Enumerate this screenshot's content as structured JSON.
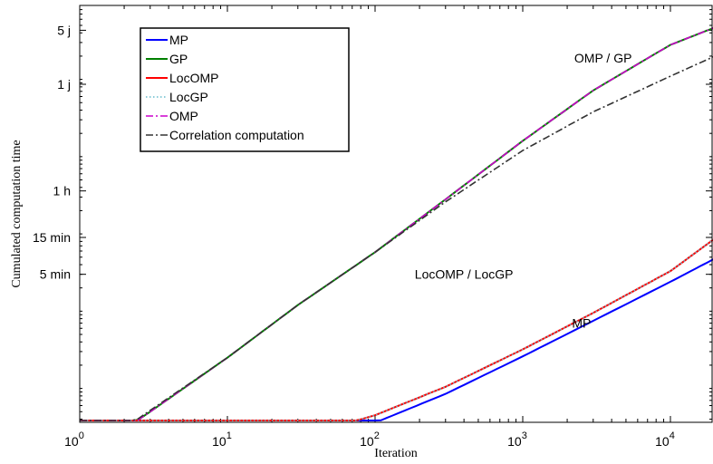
{
  "chart_data": {
    "type": "line",
    "xlabel": "Iteration",
    "ylabel": "Cumulated computation time",
    "x_scale": "log",
    "y_scale": "log",
    "xlim": [
      1,
      20000
    ],
    "x_ticks": [
      {
        "value": 1,
        "base": "10",
        "exp": "0"
      },
      {
        "value": 10,
        "base": "10",
        "exp": "1"
      },
      {
        "value": 100,
        "base": "10",
        "exp": "2"
      },
      {
        "value": 1000,
        "base": "10",
        "exp": "3"
      },
      {
        "value": 10000,
        "base": "10",
        "exp": "4"
      }
    ],
    "y_ticks": [
      {
        "label": "5 min",
        "seconds": 300
      },
      {
        "label": "15 min",
        "seconds": 900
      },
      {
        "label": "1 h",
        "seconds": 3600
      },
      {
        "label": "1 j",
        "seconds": 86400
      },
      {
        "label": "5 j",
        "seconds": 432000
      }
    ],
    "annotations": [
      {
        "text": "OMP / GP",
        "x": 3500,
        "seconds": 190000
      },
      {
        "text": "LocOMP / LocGP",
        "x": 400,
        "seconds": 300
      },
      {
        "text": "MP",
        "x": 2500,
        "seconds": 70
      }
    ],
    "legend": {
      "position": "top-left",
      "entries": [
        {
          "name": "MP",
          "color": "#0000ff",
          "dash": "solid"
        },
        {
          "name": "GP",
          "color": "#007f00",
          "dash": "solid"
        },
        {
          "name": "LocOMP",
          "color": "#ff0000",
          "dash": "solid"
        },
        {
          "name": "LocGP",
          "color": "#66bbcc",
          "dash": "dotted"
        },
        {
          "name": "OMP",
          "color": "#cc00cc",
          "dash": "dashdot"
        },
        {
          "name": "Correlation computation",
          "color": "#333333",
          "dash": "dashdot"
        }
      ]
    },
    "series": [
      {
        "name": "MP",
        "color": "#0000ff",
        "dash": "solid",
        "x": [
          1,
          3,
          10,
          30,
          100,
          300,
          1000,
          3000,
          10000,
          20000
        ],
        "seconds": [
          1.08,
          1.2,
          1.4,
          2.0,
          3.6,
          8.5,
          26,
          75,
          240,
          480
        ]
      },
      {
        "name": "GP",
        "color": "#007f00",
        "dash": "solid",
        "x": [
          1,
          3,
          10,
          30,
          100,
          300,
          1000,
          3000,
          10000,
          20000
        ],
        "seconds": [
          1.18,
          5,
          25,
          120,
          580,
          2800,
          16000,
          72000,
          280000,
          470000
        ]
      },
      {
        "name": "LocOMP",
        "color": "#ff0000",
        "dash": "solid",
        "x": [
          1,
          3,
          10,
          30,
          100,
          300,
          1000,
          3000,
          10000,
          20000
        ],
        "seconds": [
          1.08,
          1.25,
          1.5,
          2.3,
          4.5,
          10.5,
          32,
          95,
          330,
          870
        ]
      },
      {
        "name": "LocGP",
        "color": "#66bbcc",
        "dash": "dotted",
        "x": [
          1,
          3,
          10,
          30,
          100,
          300,
          1000,
          3000,
          10000,
          20000
        ],
        "seconds": [
          1.08,
          1.25,
          1.5,
          2.3,
          4.5,
          10.5,
          32,
          95,
          330,
          870
        ]
      },
      {
        "name": "OMP",
        "color": "#cc00cc",
        "dash": "dashdot",
        "x": [
          1,
          3,
          10,
          30,
          100,
          300,
          1000,
          3000,
          10000,
          20000
        ],
        "seconds": [
          1.18,
          5,
          25,
          120,
          580,
          2800,
          16000,
          72000,
          280000,
          470000
        ]
      },
      {
        "name": "Correlation computation",
        "color": "#333333",
        "dash": "dashdot",
        "x": [
          1,
          3,
          10,
          30,
          100,
          300,
          1000,
          3000,
          10000,
          20000
        ],
        "seconds": [
          1.2,
          5.2,
          25,
          120,
          580,
          2600,
          12000,
          38000,
          110000,
          200000
        ]
      }
    ]
  }
}
